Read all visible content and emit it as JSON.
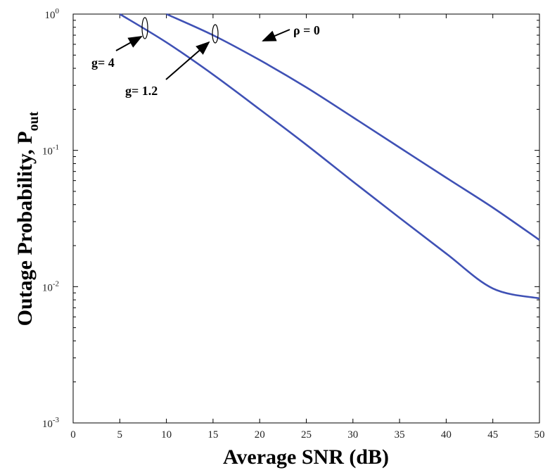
{
  "chart_data": {
    "type": "line",
    "title": "",
    "xlabel": "Average SNR (dB)",
    "ylabel": "Outage Probability, P",
    "ylabel_sub": "out",
    "xlim": [
      0,
      50
    ],
    "ylim": [
      0.001,
      1
    ],
    "yscale": "log",
    "grid": false,
    "x_ticks": [
      "0",
      "5",
      "10",
      "15",
      "20",
      "25",
      "30",
      "35",
      "40",
      "45",
      "50"
    ],
    "y_ticks": [
      {
        "base": "10",
        "exp": "-3"
      },
      {
        "base": "10",
        "exp": "-2"
      },
      {
        "base": "10",
        "exp": "-1"
      },
      {
        "base": "10",
        "exp": "0"
      }
    ],
    "series": [
      {
        "x": [
          10,
          15,
          20,
          25,
          30,
          35,
          40,
          45,
          50
        ],
        "values": [
          1.0,
          0.7,
          0.46,
          0.29,
          0.175,
          0.105,
          0.063,
          0.038,
          0.022
        ]
      },
      {
        "x": [
          5,
          10,
          15,
          20,
          25,
          30,
          35,
          40,
          45,
          50
        ],
        "values": [
          1.0,
          0.62,
          0.36,
          0.2,
          0.11,
          0.059,
          0.032,
          0.0175,
          0.0097,
          0.0082
        ]
      }
    ],
    "series_color": "#3f51b5",
    "annotations": [
      {
        "text": "g= 4"
      },
      {
        "text": "g= 1.2"
      },
      {
        "text": "ρ = 0"
      }
    ]
  }
}
